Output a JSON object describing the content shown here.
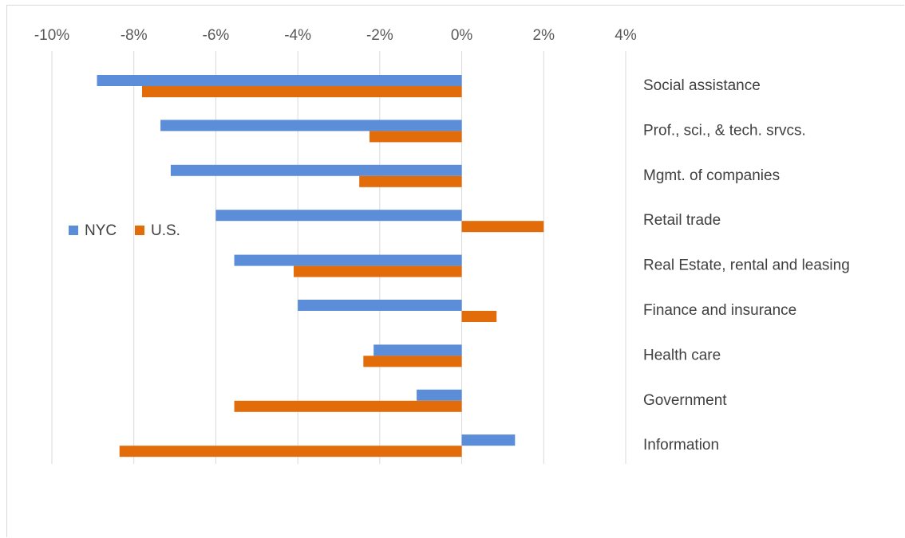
{
  "chart_data": {
    "type": "bar",
    "orientation": "horizontal",
    "title": "",
    "xlabel": "",
    "ylabel": "",
    "xlim": [
      -10,
      4
    ],
    "x_ticks": [
      "-10%",
      "-8%",
      "-6%",
      "-4%",
      "-2%",
      "0%",
      "2%",
      "4%"
    ],
    "x_tick_values": [
      -10,
      -8,
      -6,
      -4,
      -2,
      0,
      2,
      4
    ],
    "x_axis_position": "top",
    "grid": true,
    "legend_position": "left",
    "categories": [
      "Social assistance",
      "Prof., sci., & tech. srvcs.",
      "Mgmt. of companies",
      "Retail trade",
      "Real Estate, rental and leasing",
      "Finance and insurance",
      "Health care",
      "Government",
      "Information"
    ],
    "series": [
      {
        "name": "NYC",
        "color": "#5b8dd9",
        "values": [
          -8.9,
          -7.35,
          -7.1,
          -6.0,
          -5.55,
          -4.0,
          -2.15,
          -1.1,
          1.3
        ]
      },
      {
        "name": "U.S.",
        "color": "#e36c0a",
        "values": [
          -7.8,
          -2.25,
          -2.5,
          2.0,
          -4.1,
          0.85,
          -2.4,
          -5.55,
          -8.35
        ]
      }
    ]
  }
}
